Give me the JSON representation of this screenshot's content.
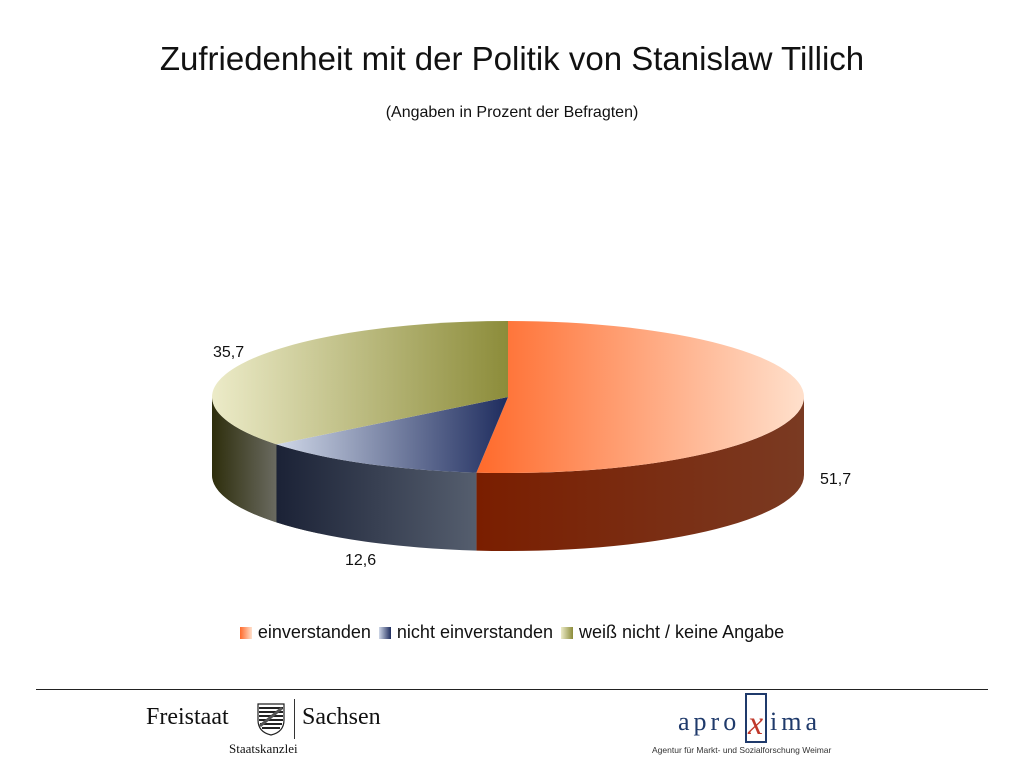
{
  "chart_data": {
    "type": "pie",
    "title": "Zufriedenheit mit der Politik von Stanislaw Tillich",
    "subtitle": "(Angaben in Prozent der Befragten)",
    "slices": [
      {
        "name": "einverstanden",
        "value": 51.7,
        "label": "51,7",
        "color": "#ff6a2b",
        "light": "#ffe0cc",
        "side": "#7a3a22",
        "side_dark": "#7a1e00"
      },
      {
        "name": "nicht einverstanden",
        "value": 12.6,
        "label": "12,6",
        "color": "#1e2c5e",
        "light": "#d0d8e8",
        "side": "#555e6e",
        "side_dark": "#1b2236"
      },
      {
        "name": "weiß nicht / keine Angabe",
        "value": 35.7,
        "label": "35,7",
        "color": "#8c8c3a",
        "light": "#ecebc8",
        "side": "#6a6a60",
        "side_dark": "#2e2e0c"
      }
    ],
    "legend_position": "bottom"
  },
  "footer": {
    "gov_left": "Freistaat",
    "gov_right": "Sachsen",
    "gov_sub": "Staatskanzlei",
    "agency_logo": "aproxima",
    "agency_sub": "Agentur für Markt- und Sozialforschung Weimar"
  }
}
